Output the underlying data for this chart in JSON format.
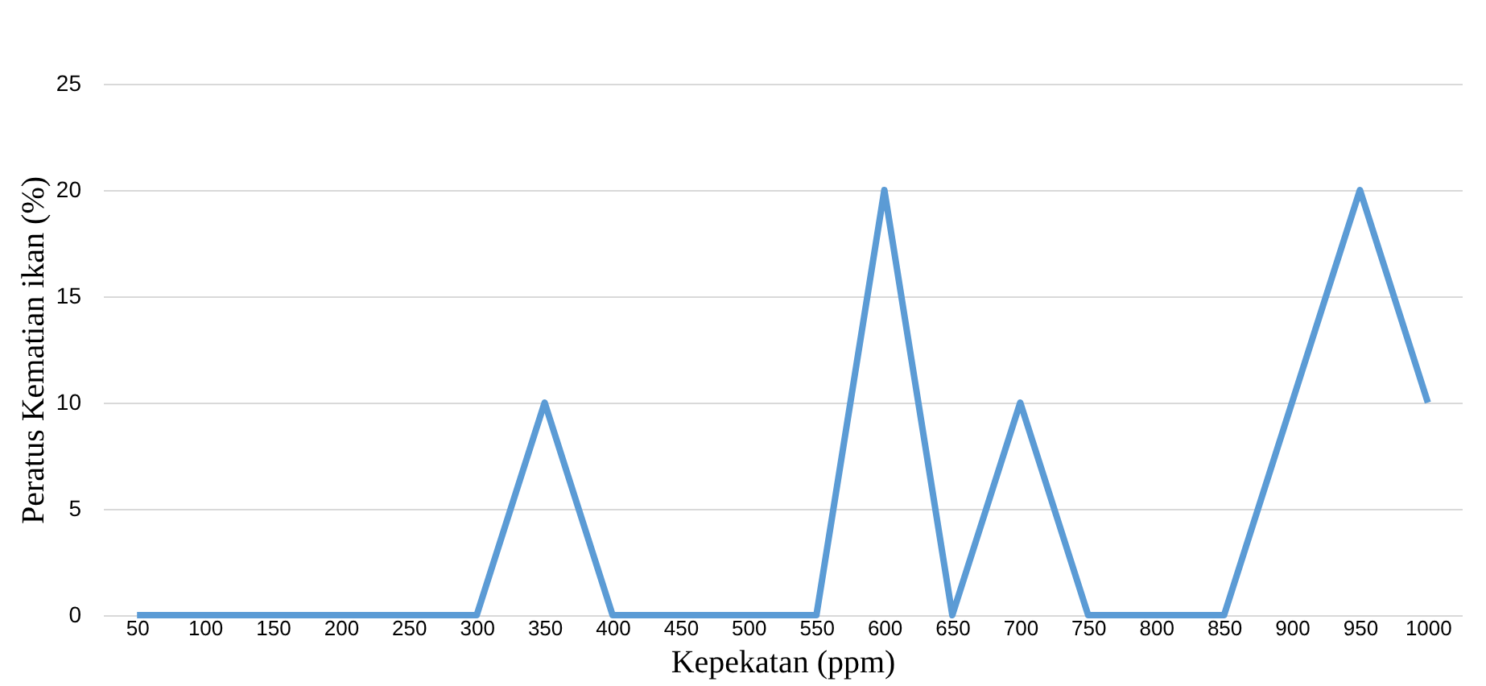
{
  "chart_data": {
    "type": "line",
    "xlabel": "Kepekatan (ppm)",
    "ylabel": "Peratus Kematian ikan (%)",
    "categories": [
      "50",
      "100",
      "150",
      "200",
      "250",
      "300",
      "350",
      "400",
      "450",
      "500",
      "550",
      "600",
      "650",
      "700",
      "750",
      "800",
      "850",
      "900",
      "950",
      "1000"
    ],
    "series": [
      {
        "color": "#5b9bd5",
        "values": [
          0,
          0,
          0,
          0,
          0,
          0,
          10,
          0,
          0,
          0,
          0,
          20,
          0,
          10,
          0,
          0,
          0,
          10,
          20,
          10
        ]
      }
    ],
    "ylim": [
      0,
      25
    ],
    "yticks": [
      0,
      5,
      10,
      15,
      20,
      25
    ],
    "grid": "y",
    "marker": "none",
    "line_style": "solid"
  }
}
